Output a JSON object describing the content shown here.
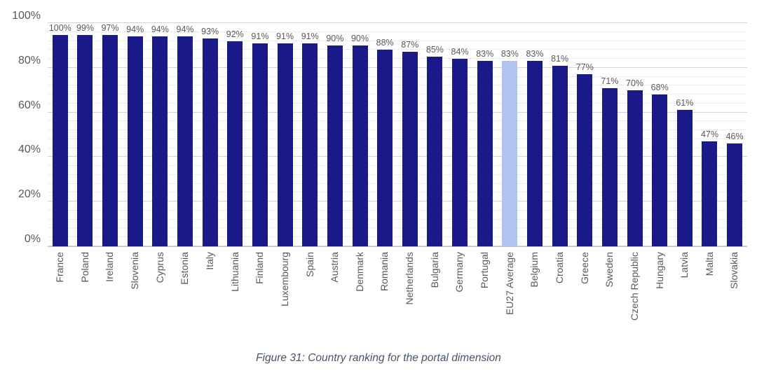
{
  "caption": "Figure 31: Country ranking for the portal dimension",
  "colors": {
    "bar": "#19198a",
    "highlight_bar": "#b3c3f0",
    "value_label_text": "#595959",
    "axis_text": "#595959",
    "caption_text": "#44546a",
    "gridline_major": "#d2d2d2",
    "gridline_minor": "#ededed"
  },
  "chart_data": {
    "type": "bar",
    "title": "",
    "xlabel": "",
    "ylabel": "",
    "unit": "%",
    "ylim": [
      0,
      100
    ],
    "y_ticks": [
      0,
      20,
      40,
      60,
      80,
      100
    ],
    "y_tick_labels": [
      "0%",
      "20%",
      "40%",
      "60%",
      "80%",
      "100%"
    ],
    "grid": "horizontal; major every 20%, minor every 4%",
    "legend": "none",
    "bar_orientation": "vertical",
    "data_labels": "above each bar, value with % sign",
    "categories": [
      "France",
      "Poland",
      "Ireland",
      "Slovenia",
      "Cyprus",
      "Estonia",
      "Italy",
      "Lithuania",
      "Finland",
      "Luxembourg",
      "Spain",
      "Austria",
      "Denmark",
      "Romania",
      "Netherlands",
      "Bulgaria",
      "Germany",
      "Portugal",
      "EU27 Average",
      "Belgium",
      "Croatia",
      "Greece",
      "Sweden",
      "Czech Republic",
      "Hungary",
      "Latvia",
      "Malta",
      "Slovakia"
    ],
    "values": [
      100,
      99,
      97,
      94,
      94,
      94,
      93,
      92,
      91,
      91,
      91,
      90,
      90,
      88,
      87,
      85,
      84,
      83,
      83,
      83,
      81,
      77,
      71,
      70,
      68,
      61,
      47,
      46
    ],
    "highlight_category": "EU27 Average",
    "highlight_index": 18
  }
}
